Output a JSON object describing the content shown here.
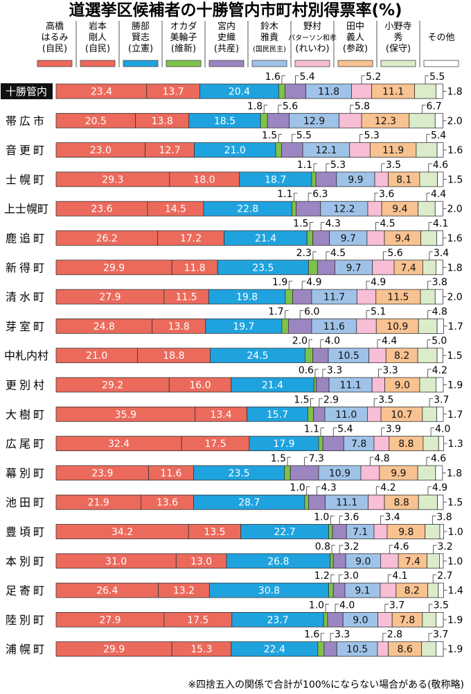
{
  "chart_data": {
    "type": "bar",
    "stacked": true,
    "orientation": "horizontal",
    "title": "道選挙区候補者の十勝管内市町村別得票率(%)",
    "footnote": "※四捨五入の関係で合計が100%にならない場合がある(敬称略)",
    "candidates": [
      {
        "lines": [
          "高橋",
          "はるみ",
          "(自民)"
        ],
        "color": "#ec6a5c"
      },
      {
        "lines": [
          "岩本",
          "剛人",
          "(自民)"
        ],
        "color": "#ec6a5c"
      },
      {
        "lines": [
          "勝部",
          "賢志",
          "(立憲)"
        ],
        "color": "#1fa3df"
      },
      {
        "lines": [
          "オカダ",
          "美輪子",
          "(維新)"
        ],
        "color": "#7fc24a"
      },
      {
        "lines": [
          "宮内",
          "史織",
          "(共産)"
        ],
        "color": "#9b86c2"
      },
      {
        "lines": [
          "鈴木",
          "雅貴",
          "(国民民主)"
        ],
        "color": "#9fc3e8"
      },
      {
        "lines": [
          "野村",
          "パターソン和孝",
          "(れいわ)"
        ],
        "color": "#f7bed6"
      },
      {
        "lines": [
          "田中",
          "義人",
          "(参政)"
        ],
        "color": "#f8c291"
      },
      {
        "lines": [
          "小野寺",
          "秀",
          "(保守)"
        ],
        "color": "#dbeccb"
      },
      {
        "lines": [
          "その他"
        ],
        "color": "#ffffff"
      }
    ],
    "categories": [
      "十勝管内",
      "帯広市",
      "音更町",
      "士幌町",
      "上士幌町",
      "鹿追町",
      "新得町",
      "清水町",
      "芽室町",
      "中札内村",
      "更別村",
      "大樹町",
      "広尾町",
      "幕別町",
      "池田町",
      "豊頃町",
      "本別町",
      "足寄町",
      "陸別町",
      "浦幌町"
    ],
    "highlight_category": "十勝管内",
    "rows": [
      [
        23.4,
        13.7,
        20.4,
        1.6,
        5.4,
        11.8,
        5.2,
        11.1,
        5.5,
        1.8
      ],
      [
        20.5,
        13.8,
        18.5,
        1.8,
        5.6,
        12.9,
        5.8,
        12.3,
        6.7,
        2.0
      ],
      [
        23.0,
        12.7,
        21.0,
        1.5,
        5.5,
        12.1,
        5.3,
        11.9,
        5.4,
        1.6
      ],
      [
        29.3,
        18.0,
        18.7,
        1.1,
        5.3,
        9.9,
        3.5,
        8.1,
        4.6,
        1.5
      ],
      [
        23.6,
        14.5,
        22.8,
        1.1,
        6.3,
        12.2,
        3.6,
        9.4,
        4.4,
        2.0
      ],
      [
        26.2,
        17.2,
        21.4,
        1.5,
        4.3,
        9.7,
        4.5,
        9.4,
        4.1,
        1.6
      ],
      [
        29.9,
        11.8,
        23.5,
        2.3,
        4.5,
        9.7,
        5.6,
        7.4,
        3.4,
        1.8
      ],
      [
        27.9,
        11.5,
        19.8,
        1.9,
        4.9,
        11.7,
        4.9,
        11.5,
        3.8,
        2.0
      ],
      [
        24.8,
        13.8,
        19.7,
        1.7,
        6.0,
        11.6,
        5.1,
        10.9,
        4.8,
        1.7
      ],
      [
        21.0,
        18.8,
        24.5,
        2.0,
        4.0,
        10.5,
        4.4,
        8.2,
        5.0,
        1.5
      ],
      [
        29.2,
        16.0,
        21.4,
        0.6,
        3.3,
        11.1,
        3.3,
        9.0,
        4.2,
        1.9
      ],
      [
        35.9,
        13.4,
        15.7,
        1.5,
        2.9,
        11.0,
        3.5,
        10.7,
        3.7,
        1.7
      ],
      [
        32.4,
        17.5,
        17.9,
        1.1,
        5.4,
        7.8,
        3.9,
        8.8,
        4.0,
        1.3
      ],
      [
        23.9,
        11.6,
        23.5,
        1.5,
        7.3,
        10.9,
        4.8,
        9.9,
        4.6,
        1.8
      ],
      [
        21.9,
        13.6,
        28.7,
        1.0,
        4.3,
        11.1,
        4.2,
        8.8,
        4.9,
        1.5
      ],
      [
        34.2,
        13.5,
        22.7,
        1.0,
        3.6,
        7.1,
        3.4,
        9.8,
        3.8,
        1.0
      ],
      [
        31.0,
        13.0,
        26.8,
        0.8,
        3.2,
        9.0,
        4.6,
        7.4,
        3.2,
        1.0
      ],
      [
        26.4,
        13.2,
        30.8,
        1.2,
        3.0,
        9.1,
        4.1,
        8.2,
        2.7,
        1.4
      ],
      [
        27.9,
        17.5,
        23.7,
        1.0,
        4.0,
        9.0,
        3.7,
        7.8,
        3.5,
        1.9
      ],
      [
        29.9,
        15.3,
        22.4,
        1.6,
        3.3,
        10.5,
        2.8,
        8.6,
        3.7,
        1.9
      ]
    ],
    "inside_label_indices": [
      0,
      1,
      2,
      5,
      7
    ],
    "above_label_indices": [
      3,
      4,
      6,
      8
    ],
    "right_label_index": 9,
    "xlim": [
      0,
      100
    ]
  }
}
